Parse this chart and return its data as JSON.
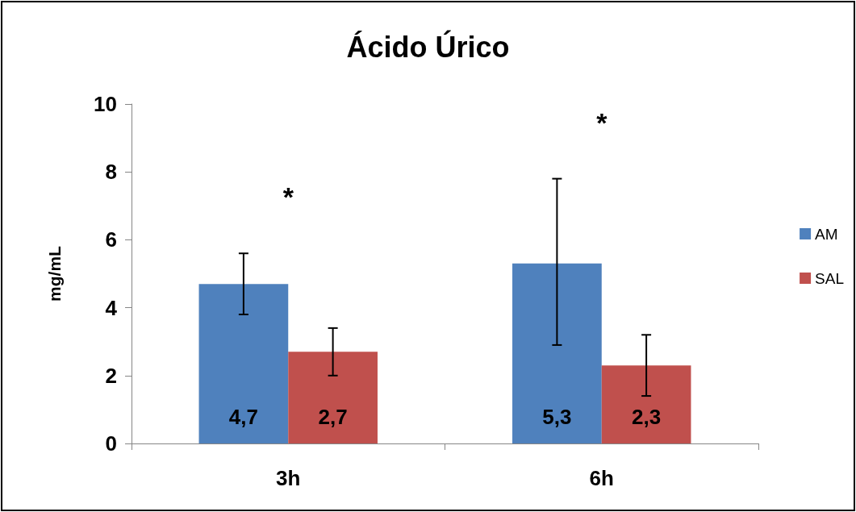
{
  "chart_data": {
    "type": "bar",
    "title": "Ácido Úrico",
    "ylabel": "mg/mL",
    "categories": [
      "3h",
      "6h"
    ],
    "series": [
      {
        "name": "AM",
        "color": "#4f81bd",
        "values": [
          4.7,
          5.3
        ],
        "value_labels": [
          "4,7",
          "5,3"
        ],
        "errors": [
          [
            3.8,
            5.6
          ],
          [
            2.9,
            7.8
          ]
        ]
      },
      {
        "name": "SAL",
        "color": "#c0504d",
        "values": [
          2.7,
          2.3
        ],
        "value_labels": [
          "2,7",
          "2,3"
        ],
        "errors": [
          [
            2.0,
            3.4
          ],
          [
            1.4,
            3.2
          ]
        ]
      }
    ],
    "ylim": [
      0,
      10
    ],
    "yticks": [
      0,
      2,
      4,
      6,
      8,
      10
    ],
    "grid": false,
    "legend": "right",
    "annotations": [
      "*",
      "*"
    ]
  }
}
